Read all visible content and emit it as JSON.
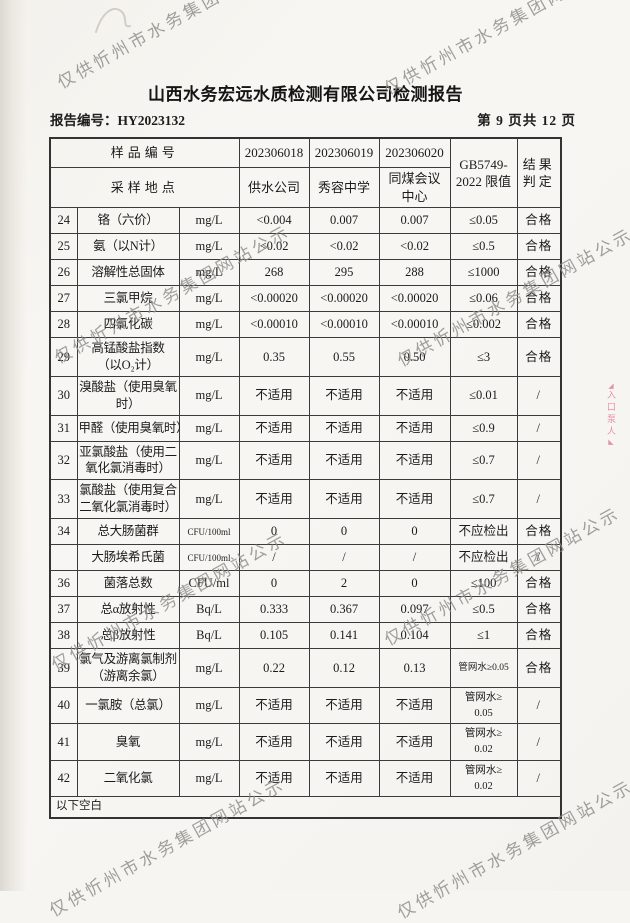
{
  "watermark": {
    "text": "仅供忻州市水务集团网站公示",
    "color": "#8e8c89"
  },
  "edge_stamp": {
    "text": "入口泵人",
    "color": "#e2819f"
  },
  "header": {
    "title": "山西水务宏远水质检测有限公司检测报告",
    "report_no": "报告编号：HY2023132",
    "page_info": "第 9 页共 12 页"
  },
  "table": {
    "head": {
      "sample_id_label": "样品编号",
      "location_label": "采样地点",
      "sample_ids": [
        "202306018",
        "202306019",
        "202306020"
      ],
      "locations": [
        "供水公司",
        "秀容中学",
        "同煤会议\n中心"
      ],
      "standard_header": "GB5749-\n2022 限值",
      "result_header": "结果\n判定"
    },
    "rows": [
      {
        "num": "24",
        "name": "铬（六价）",
        "unit": "mg/L",
        "values": [
          "<0.004",
          "0.007",
          "0.007"
        ],
        "limit": "≤0.05",
        "result": "合格"
      },
      {
        "num": "25",
        "name": "氨（以N计）",
        "unit": "mg/L",
        "values": [
          "<0.02",
          "<0.02",
          "<0.02"
        ],
        "limit": "≤0.5",
        "result": "合格"
      },
      {
        "num": "26",
        "name": "溶解性总固体",
        "unit": "mg/L",
        "values": [
          "268",
          "295",
          "288"
        ],
        "limit": "≤1000",
        "result": "合格"
      },
      {
        "num": "27",
        "name": "三氯甲烷",
        "unit": "mg/L",
        "values": [
          "<0.00020",
          "<0.00020",
          "<0.00020"
        ],
        "limit": "≤0.06",
        "result": "合格"
      },
      {
        "num": "28",
        "name": "四氯化碳",
        "unit": "mg/L",
        "values": [
          "<0.00010",
          "<0.00010",
          "<0.00010"
        ],
        "limit": "≤0.002",
        "result": "合格"
      },
      {
        "num": "29",
        "name": "高锰酸盐指数\n（以O₂计）",
        "unit": "mg/L",
        "values": [
          "0.35",
          "0.55",
          "0.50"
        ],
        "limit": "≤3",
        "result": "合格"
      },
      {
        "num": "30",
        "name": "溴酸盐（使用臭氧\n时）",
        "unit": "mg/L",
        "values": [
          "不适用",
          "不适用",
          "不适用"
        ],
        "limit": "≤0.01",
        "result": "/"
      },
      {
        "num": "31",
        "name": "甲醛（使用臭氧时）",
        "unit": "mg/L",
        "values": [
          "不适用",
          "不适用",
          "不适用"
        ],
        "limit": "≤0.9",
        "result": "/"
      },
      {
        "num": "32",
        "name": "亚氯酸盐（使用二\n氧化氯消毒时）",
        "unit": "mg/L",
        "values": [
          "不适用",
          "不适用",
          "不适用"
        ],
        "limit": "≤0.7",
        "result": "/"
      },
      {
        "num": "33",
        "name": "氯酸盐（使用复合\n二氧化氯消毒时）",
        "unit": "mg/L",
        "values": [
          "不适用",
          "不适用",
          "不适用"
        ],
        "limit": "≤0.7",
        "result": "/"
      },
      {
        "num": "34",
        "name": "总大肠菌群",
        "unit": "CFU/100ml",
        "values": [
          "0",
          "0",
          "0"
        ],
        "limit": "不应检出",
        "result": "合格"
      },
      {
        "num": "",
        "name": "大肠埃希氏菌",
        "unit": "CFU/100ml",
        "values": [
          "/",
          "/",
          "/"
        ],
        "limit": "不应检出",
        "result": "/"
      },
      {
        "num": "36",
        "name": "菌落总数",
        "unit": "CFU/ml",
        "values": [
          "0",
          "2",
          "0"
        ],
        "limit": "≤100",
        "result": "合格"
      },
      {
        "num": "37",
        "name": "总α放射性",
        "unit": "Bq/L",
        "values": [
          "0.333",
          "0.367",
          "0.097"
        ],
        "limit": "≤0.5",
        "result": "合格"
      },
      {
        "num": "38",
        "name": "总β放射性",
        "unit": "Bq/L",
        "values": [
          "0.105",
          "0.141",
          "0.104"
        ],
        "limit": "≤1",
        "result": "合格"
      },
      {
        "num": "39",
        "name": "氯气及游离氯制剂\n（游离余氯）",
        "unit": "mg/L",
        "values": [
          "0.22",
          "0.12",
          "0.13"
        ],
        "limit": "管网水≥0.05",
        "result": "合格"
      },
      {
        "num": "40",
        "name": "一氯胺（总氯）",
        "unit": "mg/L",
        "values": [
          "不适用",
          "不适用",
          "不适用"
        ],
        "limit": "管网水≥\n0.05",
        "result": "/"
      },
      {
        "num": "41",
        "name": "臭氧",
        "unit": "mg/L",
        "values": [
          "不适用",
          "不适用",
          "不适用"
        ],
        "limit": "管网水≥\n0.02",
        "result": "/"
      },
      {
        "num": "42",
        "name": "二氧化氯",
        "unit": "mg/L",
        "values": [
          "不适用",
          "不适用",
          "不适用"
        ],
        "limit": "管网水≥\n0.02",
        "result": "/"
      }
    ],
    "footer_note": "以下空白"
  }
}
